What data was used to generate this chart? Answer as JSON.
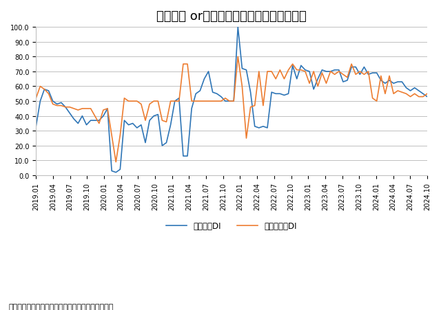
{
  "title": "「外国人 orインバウンド」関連ＤＩの推移",
  "source_note": "（出所）内閣府「景気ウォッチャー調査」より作成",
  "line1_label": "現状判断DI",
  "line2_label": "先行き判断DI",
  "line1_color": "#2E75B6",
  "line2_color": "#ED7D31",
  "ylim": [
    0.0,
    100.0
  ],
  "yticks": [
    0.0,
    10.0,
    20.0,
    30.0,
    40.0,
    50.0,
    60.0,
    70.0,
    80.0,
    90.0,
    100.0
  ],
  "xtick_labels": [
    "2019.01",
    "2019.04",
    "2019.07",
    "2019.10",
    "2020.01",
    "2020.04",
    "2020.07",
    "2020.10",
    "2021.01",
    "2021.04",
    "2021.07",
    "2021.10",
    "2022.01",
    "2022.04",
    "2022.07",
    "2022.10",
    "2023.01",
    "2023.04",
    "2023.07",
    "2023.10",
    "2024.01",
    "2024.04",
    "2024.07",
    "2024.10"
  ],
  "line1_values": [
    33,
    50,
    58,
    57,
    50,
    48,
    49,
    46,
    42,
    38,
    35,
    40,
    34,
    37,
    37,
    37,
    40,
    45,
    3,
    2,
    4,
    37,
    34,
    35,
    32,
    34,
    22,
    37,
    40,
    41,
    20,
    22,
    34,
    50,
    52,
    13,
    13,
    45,
    55,
    57,
    65,
    70,
    56,
    55,
    53,
    50,
    50,
    50,
    100,
    72,
    71,
    56,
    33,
    32,
    33,
    32,
    56,
    55,
    55,
    54,
    55,
    74,
    65,
    74,
    71,
    70,
    58,
    65,
    71,
    70,
    70,
    71,
    71,
    63,
    64,
    73,
    73,
    68,
    73,
    68,
    69,
    69,
    64,
    62,
    64,
    62,
    63,
    63,
    59,
    57,
    59,
    57,
    55,
    53
  ],
  "line2_values": [
    52,
    60,
    58,
    55,
    48,
    47,
    47,
    46,
    46,
    45,
    44,
    45,
    45,
    45,
    40,
    35,
    44,
    45,
    27,
    9,
    27,
    52,
    50,
    50,
    50,
    48,
    37,
    48,
    50,
    50,
    37,
    36,
    50,
    50,
    50,
    75,
    75,
    50,
    50,
    50,
    50,
    50,
    50,
    50,
    50,
    52,
    50,
    50,
    80,
    60,
    25,
    46,
    47,
    70,
    47,
    70,
    70,
    65,
    71,
    65,
    71,
    75,
    71,
    71,
    70,
    62,
    70,
    60,
    69,
    62,
    70,
    68,
    70,
    68,
    66,
    75,
    68,
    70,
    68,
    70,
    52,
    50,
    67,
    55,
    67,
    55,
    57,
    56,
    55,
    53,
    55,
    53,
    53,
    55
  ],
  "background_color": "#FFFFFF",
  "grid_color": "#C0C0C0",
  "title_fontsize": 13,
  "legend_fontsize": 8.5,
  "tick_fontsize": 7
}
